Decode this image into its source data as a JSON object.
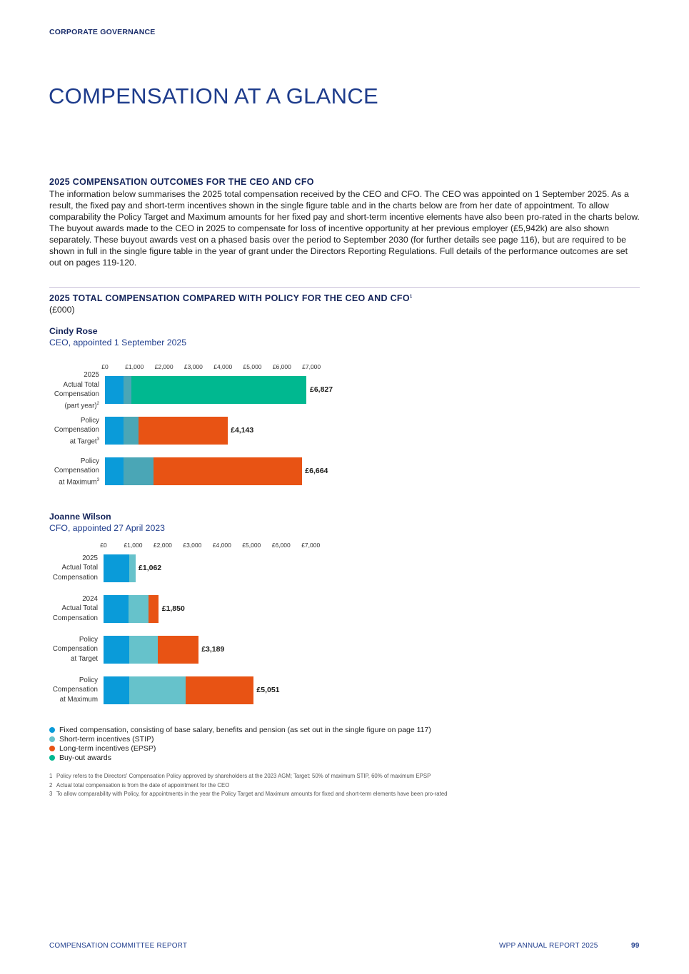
{
  "header": {
    "section": "CORPORATE GOVERNANCE",
    "title": "COMPENSATION AT A GLANCE"
  },
  "intro": {
    "heading": "2025 COMPENSATION OUTCOMES FOR THE CEO AND CFO",
    "body": "The information below summarises the 2025 total compensation received by the CEO and CFO. The CEO was appointed on 1 September 2025. As a result, the fixed pay and short-term incentives shown in the single figure table and in the charts below are from her date of appointment. To allow comparability the Policy Target and Maximum amounts for her fixed pay and short-term incentive elements have also been pro-rated in the charts below. The buyout awards made to the CEO in 2025 to compensate for loss of incentive opportunity at her previous employer (£5,942k) are also shown separately. These buyout awards vest on a phased basis over the period to September 2030 (for further details see page 116), but are required to be shown in full in the single figure table in the year of grant under the Directors Reporting Regulations. Full details of the performance outcomes are set out on pages 119-120."
  },
  "charts_section": {
    "heading": "2025 TOTAL COMPENSATION COMPARED WITH POLICY FOR THE CEO AND CFO",
    "heading_note": "1",
    "unit": "(£000)"
  },
  "colors": {
    "fixed": "#0a9bd9",
    "stip_ceo": "#4aa6b6",
    "stip_cfo": "#66c2cb",
    "epsp": "#e85314",
    "buyout": "#00b890"
  },
  "chart_data": [
    {
      "type": "bar",
      "orientation": "horizontal-stacked",
      "person": "Cindy Rose",
      "role": "CEO, appointed 1 September 2025",
      "xlim": [
        0,
        7000
      ],
      "ticks": [
        "£0",
        "£1,000",
        "£2,000",
        "£3,000",
        "£4,000",
        "£5,000",
        "£6,000",
        "£7,000"
      ],
      "rows": [
        {
          "label": [
            "2025",
            "Actual Total",
            "Compensation",
            "(part year)"
          ],
          "note": "2",
          "total": "£6,827",
          "segments": [
            {
              "series": "fixed",
              "value": 620
            },
            {
              "series": "stip",
              "value": 265
            },
            {
              "series": "buyout",
              "value": 5942
            }
          ]
        },
        {
          "label": [
            "Policy",
            "Compensation",
            "at Target"
          ],
          "note": "3",
          "total": "£4,143",
          "segments": [
            {
              "series": "fixed",
              "value": 620
            },
            {
              "series": "stip",
              "value": 518
            },
            {
              "series": "epsp",
              "value": 3005
            }
          ]
        },
        {
          "label": [
            "Policy",
            "Compensation",
            "at Maximum"
          ],
          "note": "3",
          "total": "£6,664",
          "segments": [
            {
              "series": "fixed",
              "value": 620
            },
            {
              "series": "stip",
              "value": 1036
            },
            {
              "series": "epsp",
              "value": 5008
            }
          ]
        }
      ]
    },
    {
      "type": "bar",
      "orientation": "horizontal-stacked",
      "person": "Joanne Wilson",
      "role": "CFO, appointed 27 April 2023",
      "xlim": [
        0,
        7000
      ],
      "ticks": [
        "£0",
        "£1,000",
        "£2,000",
        "£3,000",
        "£4,000",
        "£5,000",
        "£6,000",
        "£7,000"
      ],
      "rows": [
        {
          "label": [
            "2025",
            "Actual Total",
            "Compensation"
          ],
          "note": "",
          "total": "£1,062",
          "segments": [
            {
              "series": "fixed",
              "value": 868
            },
            {
              "series": "stip",
              "value": 194
            }
          ]
        },
        {
          "label": [
            "2024",
            "Actual Total",
            "Compensation"
          ],
          "note": "",
          "total": "£1,850",
          "segments": [
            {
              "series": "fixed",
              "value": 853
            },
            {
              "series": "stip",
              "value": 676
            },
            {
              "series": "epsp",
              "value": 321
            }
          ]
        },
        {
          "label": [
            "Policy",
            "Compensation",
            "at Target"
          ],
          "note": "",
          "total": "£3,189",
          "segments": [
            {
              "series": "fixed",
              "value": 868
            },
            {
              "series": "stip",
              "value": 958
            },
            {
              "series": "epsp",
              "value": 1363
            }
          ]
        },
        {
          "label": [
            "Policy",
            "Compensation",
            "at Maximum"
          ],
          "note": "",
          "total": "£5,051",
          "segments": [
            {
              "series": "fixed",
              "value": 868
            },
            {
              "series": "stip",
              "value": 1916
            },
            {
              "series": "epsp",
              "value": 2267
            }
          ]
        }
      ]
    }
  ],
  "legend": [
    {
      "key": "fixed",
      "label": "Fixed compensation, consisting of base salary, benefits and pension (as set out in the single figure on page 117)"
    },
    {
      "key": "stip_cfo",
      "label": "Short-term incentives (STIP)"
    },
    {
      "key": "epsp",
      "label": "Long-term incentives (EPSP)"
    },
    {
      "key": "buyout",
      "label": "Buy-out awards"
    }
  ],
  "footnotes": [
    {
      "num": "1",
      "text": "Policy refers to the Directors' Compensation Policy approved by shareholders at the 2023 AGM; Target: 50% of maximum STIP, 60% of maximum EPSP"
    },
    {
      "num": "2",
      "text": "Actual total compensation is from the date of appointment for the CEO"
    },
    {
      "num": "3",
      "text": "To allow comparability with Policy, for appointments in the year the Policy Target and Maximum amounts for fixed and short-term elements have been pro-rated"
    }
  ],
  "footer": {
    "left": "COMPENSATION COMMITTEE REPORT",
    "right": "WPP ANNUAL REPORT 2025",
    "page": "99"
  }
}
